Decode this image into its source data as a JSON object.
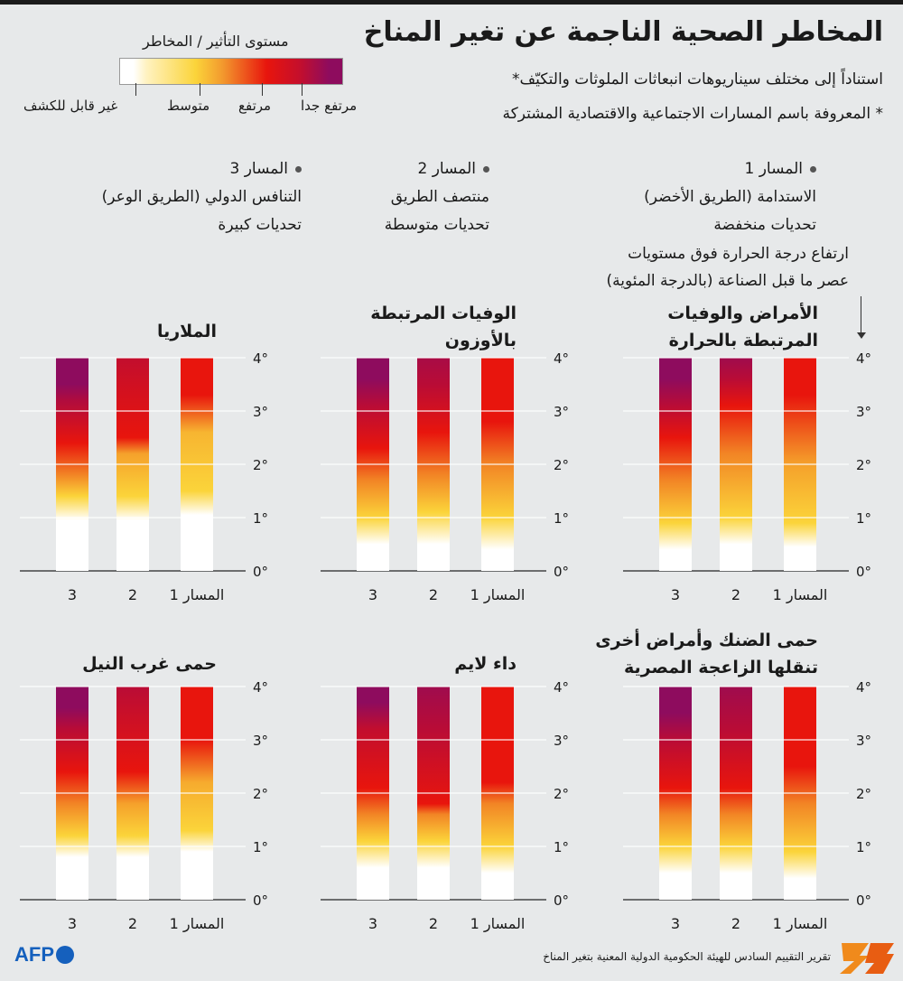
{
  "header": {
    "title": "المخاطر الصحية الناجمة عن تغير المناخ",
    "subtitle": "استناداً إلى مختلف سيناريوهات انبعاثات الملوثات والتكيّف*",
    "footnote": "* المعروفة باسم المسارات الاجتماعية والاقتصادية المشتركة"
  },
  "legend": {
    "title": "مستوى التأثير / المخاطر",
    "levels": [
      "غير قابل للكشف",
      "متوسط",
      "مرتفع",
      "مرتفع جدا"
    ],
    "colors": [
      "#ffffff",
      "#fbd43a",
      "#e8150d",
      "#8e0c5e"
    ]
  },
  "pathways": [
    {
      "label": "المسار 1",
      "name": "الاستدامة (الطريق الأخضر)",
      "challenge": "تحديات منخفضة"
    },
    {
      "label": "المسار 2",
      "name": "منتصف الطريق",
      "challenge": "تحديات متوسطة"
    },
    {
      "label": "المسار 3",
      "name": "التنافس الدولي (الطريق الوعر)",
      "challenge": "تحديات كبيرة"
    }
  ],
  "axis_note": {
    "line1": "ارتفاع درجة الحرارة فوق مستويات",
    "line2": "عصر ما قبل الصناعة (بالدرجة المئوية)"
  },
  "source": "تقرير التقييم السادس للهيئة الحكومية الدولية المعنية بتغير المناخ",
  "brand": {
    "agency": "AFP"
  },
  "chart_data": [
    {
      "type": "heatmap",
      "title_lines": [
        "الأمراض والوفيات",
        "المرتبطة بالحرارة"
      ],
      "y_ticks": [
        "0°",
        "1°",
        "2°",
        "3°",
        "4°"
      ],
      "ylim": [
        0,
        4
      ],
      "categories": [
        "المسار 1",
        "2",
        "3"
      ],
      "series": [
        {
          "stops": [
            [
              0,
              0
            ],
            [
              0.45,
              0
            ],
            [
              0.9,
              1
            ],
            [
              2.0,
              1.5
            ],
            [
              3.3,
              2
            ],
            [
              4.0,
              2
            ]
          ]
        },
        {
          "stops": [
            [
              0,
              0
            ],
            [
              0.5,
              0
            ],
            [
              1.0,
              1
            ],
            [
              2.2,
              1.6
            ],
            [
              3.1,
              2
            ],
            [
              3.6,
              2.5
            ],
            [
              4.0,
              2.8
            ]
          ]
        },
        {
          "stops": [
            [
              0,
              0
            ],
            [
              0.4,
              0
            ],
            [
              0.9,
              1
            ],
            [
              1.7,
              1.6
            ],
            [
              2.5,
              2
            ],
            [
              3.1,
              2.5
            ],
            [
              3.6,
              3
            ]
          ]
        }
      ]
    },
    {
      "type": "heatmap",
      "title_lines": [
        "الوفيات المرتبطة",
        "بالأوزون"
      ],
      "y_ticks": [
        "0°",
        "1°",
        "2°",
        "3°",
        "4°"
      ],
      "ylim": [
        0,
        4
      ],
      "categories": [
        "المسار 1",
        "2",
        "3"
      ],
      "series": [
        {
          "stops": [
            [
              0,
              0
            ],
            [
              0.4,
              0
            ],
            [
              1.0,
              1
            ],
            [
              2.0,
              1.6
            ],
            [
              2.8,
              2
            ],
            [
              4.0,
              2
            ]
          ]
        },
        {
          "stops": [
            [
              0,
              0
            ],
            [
              0.5,
              0
            ],
            [
              1.1,
              1
            ],
            [
              1.8,
              1.6
            ],
            [
              2.6,
              2
            ],
            [
              3.5,
              2.5
            ],
            [
              4.0,
              2.7
            ]
          ]
        },
        {
          "stops": [
            [
              0,
              0
            ],
            [
              0.5,
              0
            ],
            [
              1.0,
              1
            ],
            [
              1.7,
              1.6
            ],
            [
              2.3,
              2
            ],
            [
              3.1,
              2.5
            ],
            [
              3.6,
              3
            ]
          ]
        }
      ]
    },
    {
      "type": "heatmap",
      "title_lines": [
        "الملاريا"
      ],
      "y_ticks": [
        "0°",
        "1°",
        "2°",
        "3°",
        "4°"
      ],
      "ylim": [
        0,
        4
      ],
      "categories": [
        "المسار 1",
        "2",
        "3"
      ],
      "series": [
        {
          "stops": [
            [
              0,
              0
            ],
            [
              1.05,
              0
            ],
            [
              1.5,
              1
            ],
            [
              2.6,
              1.3
            ],
            [
              3.3,
              2
            ],
            [
              4.0,
              2
            ]
          ]
        },
        {
          "stops": [
            [
              0,
              0
            ],
            [
              0.95,
              0
            ],
            [
              1.4,
              1
            ],
            [
              2.2,
              1.5
            ],
            [
              2.5,
              2
            ],
            [
              3.3,
              2.2
            ],
            [
              4.0,
              2.4
            ]
          ]
        },
        {
          "stops": [
            [
              0,
              0
            ],
            [
              0.95,
              0
            ],
            [
              1.4,
              1
            ],
            [
              1.8,
              1.6
            ],
            [
              2.4,
              2
            ],
            [
              3.2,
              2.6
            ],
            [
              3.5,
              3
            ]
          ]
        }
      ]
    },
    {
      "type": "heatmap",
      "title_lines": [
        "حمى الضنك وأمراض أخرى",
        "تنقلها الزاعجة المصرية"
      ],
      "y_ticks": [
        "0°",
        "1°",
        "2°",
        "3°",
        "4°"
      ],
      "ylim": [
        0,
        4
      ],
      "categories": [
        "المسار 1",
        "2",
        "3"
      ],
      "series": [
        {
          "stops": [
            [
              0,
              0
            ],
            [
              0.4,
              0
            ],
            [
              0.9,
              1
            ],
            [
              1.8,
              1.6
            ],
            [
              2.5,
              2
            ],
            [
              4.0,
              2
            ]
          ]
        },
        {
          "stops": [
            [
              0,
              0
            ],
            [
              0.5,
              0
            ],
            [
              1.0,
              1
            ],
            [
              1.6,
              1.6
            ],
            [
              2.1,
              2
            ],
            [
              3.2,
              2.5
            ],
            [
              4.0,
              2.8
            ]
          ]
        },
        {
          "stops": [
            [
              0,
              0
            ],
            [
              0.5,
              0
            ],
            [
              1.0,
              1
            ],
            [
              1.6,
              1.6
            ],
            [
              2.1,
              2
            ],
            [
              3.0,
              2.5
            ],
            [
              3.5,
              3
            ]
          ]
        }
      ]
    },
    {
      "type": "heatmap",
      "title_lines": [
        "داء لايم"
      ],
      "y_ticks": [
        "0°",
        "1°",
        "2°",
        "3°",
        "4°"
      ],
      "ylim": [
        0,
        4
      ],
      "categories": [
        "المسار 1",
        "2",
        "3"
      ],
      "series": [
        {
          "stops": [
            [
              0,
              0
            ],
            [
              0.5,
              0
            ],
            [
              1.0,
              1
            ],
            [
              1.8,
              1.6
            ],
            [
              2.2,
              2
            ],
            [
              4.0,
              2
            ]
          ]
        },
        {
          "stops": [
            [
              0,
              0
            ],
            [
              0.6,
              0
            ],
            [
              1.1,
              1
            ],
            [
              1.6,
              1.6
            ],
            [
              1.8,
              2
            ],
            [
              3.2,
              2.5
            ],
            [
              4.0,
              2.8
            ]
          ]
        },
        {
          "stops": [
            [
              0,
              0
            ],
            [
              0.6,
              0
            ],
            [
              1.1,
              1
            ],
            [
              1.6,
              1.6
            ],
            [
              2.1,
              2
            ],
            [
              3.2,
              2.4
            ],
            [
              3.7,
              3
            ]
          ]
        }
      ]
    },
    {
      "type": "heatmap",
      "title_lines": [
        "حمى غرب النيل"
      ],
      "y_ticks": [
        "0°",
        "1°",
        "2°",
        "3°",
        "4°"
      ],
      "ylim": [
        0,
        4
      ],
      "categories": [
        "المسار 1",
        "2",
        "3"
      ],
      "series": [
        {
          "stops": [
            [
              0,
              0
            ],
            [
              0.9,
              0
            ],
            [
              1.3,
              1
            ],
            [
              2.2,
              1.4
            ],
            [
              3.0,
              2
            ],
            [
              4.0,
              2
            ]
          ]
        },
        {
          "stops": [
            [
              0,
              0
            ],
            [
              0.8,
              0
            ],
            [
              1.2,
              1
            ],
            [
              1.8,
              1.5
            ],
            [
              2.4,
              2
            ],
            [
              3.4,
              2.3
            ],
            [
              4.0,
              2.5
            ]
          ]
        },
        {
          "stops": [
            [
              0,
              0
            ],
            [
              0.8,
              0
            ],
            [
              1.2,
              1
            ],
            [
              1.8,
              1.6
            ],
            [
              2.4,
              2
            ],
            [
              3.2,
              2.5
            ],
            [
              3.6,
              3
            ]
          ]
        }
      ]
    }
  ]
}
